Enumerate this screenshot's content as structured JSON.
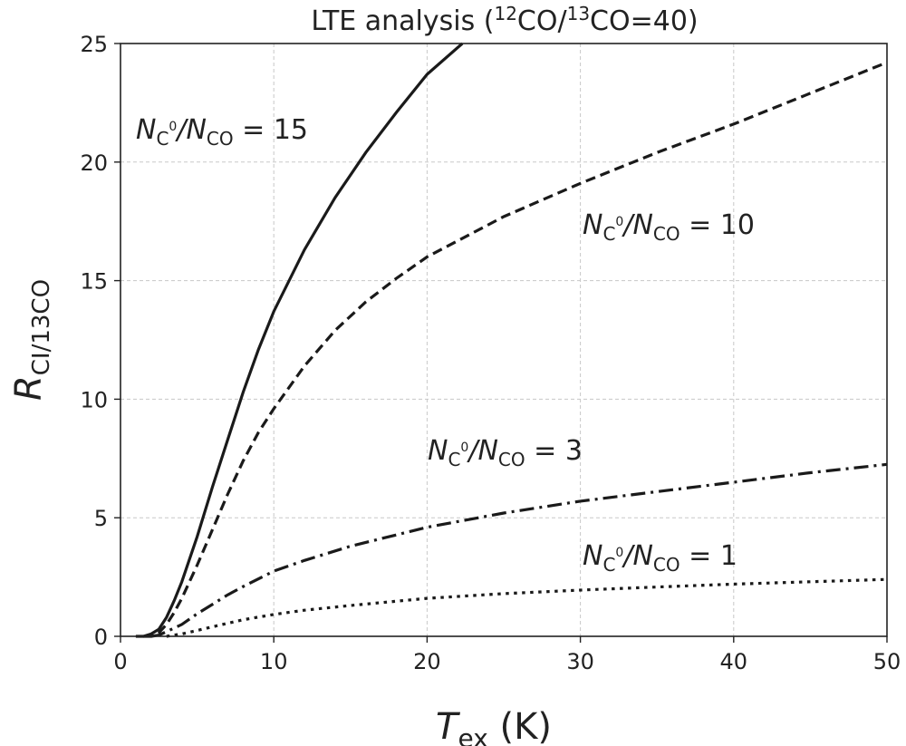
{
  "chart_data": {
    "type": "line",
    "title": {
      "prefix": "LTE analysis (",
      "sup1": "12",
      "mid": "CO/",
      "sup2": "13",
      "suffix": "CO=40)"
    },
    "xlabel": {
      "main": "T",
      "sub": "ex",
      "unit": " (K)"
    },
    "ylabel": {
      "main": "R",
      "sub": "CI/13CO"
    },
    "xlim": [
      0,
      50
    ],
    "ylim": [
      0,
      25
    ],
    "xticks": [
      0,
      10,
      20,
      30,
      40,
      50
    ],
    "yticks": [
      0,
      5,
      10,
      15,
      20,
      25
    ],
    "grid": true,
    "series": [
      {
        "name": "NC0/NCO = 15",
        "ratio": "15",
        "style": "solid",
        "x": [
          1,
          1.5,
          2,
          2.5,
          3,
          3.5,
          4,
          5,
          6,
          7,
          8,
          9,
          10,
          12,
          14,
          16,
          18,
          20,
          22.3
        ],
        "y": [
          0,
          0,
          0.1,
          0.3,
          0.8,
          1.5,
          2.3,
          4.2,
          6.3,
          8.3,
          10.3,
          12.1,
          13.7,
          16.3,
          18.5,
          20.4,
          22.1,
          23.7,
          25
        ]
      },
      {
        "name": "NC0/NCO = 10",
        "ratio": "10",
        "style": "dashed",
        "x": [
          1.5,
          2,
          2.5,
          3,
          3.5,
          4,
          5,
          6,
          7,
          8,
          9,
          10,
          12,
          14,
          16,
          18,
          20,
          25,
          30,
          35,
          40,
          45,
          50
        ],
        "y": [
          0,
          0,
          0.15,
          0.5,
          1.0,
          1.6,
          3.0,
          4.5,
          6.0,
          7.4,
          8.6,
          9.6,
          11.4,
          12.9,
          14.1,
          15.1,
          16.0,
          17.7,
          19.1,
          20.4,
          21.6,
          22.9,
          24.2
        ]
      },
      {
        "name": "NC0/NCO = 3",
        "ratio": "3",
        "style": "dashdot",
        "x": [
          2,
          2.5,
          3,
          4,
          5,
          6,
          7,
          8,
          10,
          12,
          15,
          20,
          25,
          30,
          35,
          40,
          45,
          50
        ],
        "y": [
          0,
          0.05,
          0.2,
          0.5,
          0.95,
          1.35,
          1.75,
          2.1,
          2.75,
          3.2,
          3.8,
          4.6,
          5.2,
          5.7,
          6.1,
          6.5,
          6.9,
          7.25
        ]
      },
      {
        "name": "NC0/NCO = 1",
        "ratio": "1",
        "style": "dotted",
        "x": [
          3,
          4,
          5,
          6,
          8,
          10,
          12,
          15,
          20,
          25,
          30,
          35,
          40,
          45,
          50
        ],
        "y": [
          0,
          0.1,
          0.25,
          0.4,
          0.7,
          0.92,
          1.1,
          1.3,
          1.6,
          1.8,
          1.95,
          2.08,
          2.2,
          2.3,
          2.4
        ]
      }
    ],
    "annotations": [
      {
        "n": "N",
        "sub1": "C",
        "sup": "0",
        "slash": "/N",
        "sub2": "CO",
        "eq": " = 15",
        "target": "15"
      },
      {
        "n": "N",
        "sub1": "C",
        "sup": "0",
        "slash": "/N",
        "sub2": "CO",
        "eq": " = 10",
        "target": "10"
      },
      {
        "n": "N",
        "sub1": "C",
        "sup": "0",
        "slash": "/N",
        "sub2": "CO",
        "eq": " = 3",
        "target": "3"
      },
      {
        "n": "N",
        "sub1": "C",
        "sup": "0",
        "slash": "/N",
        "sub2": "CO",
        "eq": " = 1",
        "target": "1"
      }
    ]
  }
}
